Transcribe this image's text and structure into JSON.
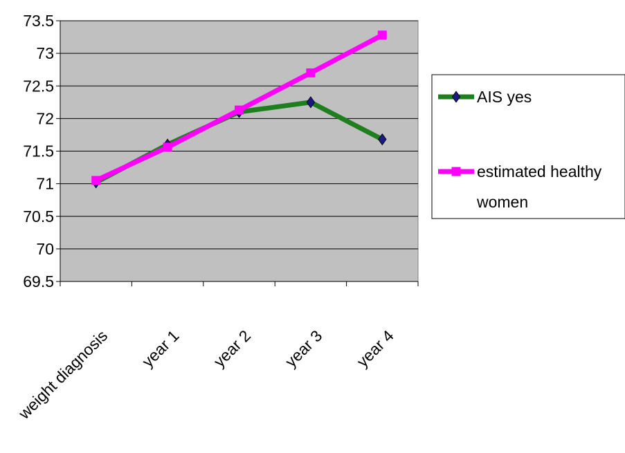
{
  "chart_data": {
    "type": "line",
    "title": "",
    "xlabel": "",
    "ylabel": "",
    "categories": [
      "weight diagnosis",
      "year 1",
      "year 2",
      "year 3",
      "year 4"
    ],
    "categories_shown": [
      "weight diagnosis",
      "year 1",
      "year 2",
      "year 3",
      "year 4"
    ],
    "ylim": [
      69.5,
      73.5
    ],
    "yticks": [
      "73.5",
      "73",
      "72.5",
      "72",
      "71.5",
      "71",
      "70.5",
      "70",
      "69.5"
    ],
    "grid": "horizontal",
    "plot_background": "#c0c0c0",
    "legend_position": "right",
    "series": [
      {
        "name": "AIS yes",
        "color": "#1f7f1f",
        "marker": "diamond",
        "marker_color": "#1a1a80",
        "values": [
          71.02,
          71.6,
          72.1,
          72.25,
          71.68
        ]
      },
      {
        "name": "estimated healthy women",
        "color": "#ff00ff",
        "marker": "square",
        "marker_color": "#ff00ff",
        "values": [
          71.05,
          71.56,
          72.13,
          72.7,
          73.28
        ]
      }
    ],
    "legend": {
      "entries": [
        {
          "line1": "AIS yes",
          "line2": ""
        },
        {
          "line1": "estimated healthy",
          "line2": "women"
        }
      ]
    }
  }
}
